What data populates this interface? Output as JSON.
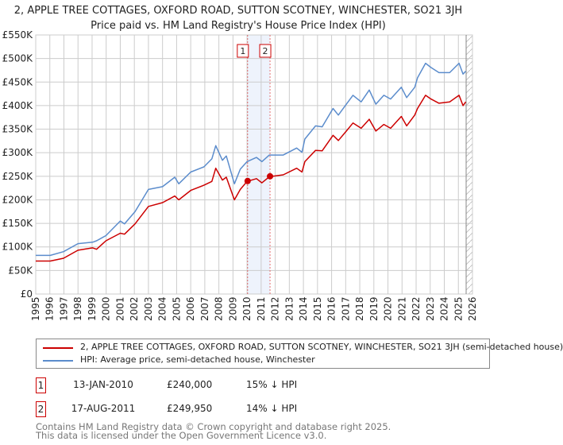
{
  "chart_data": {
    "type": "line",
    "title": "2, APPLE TREE COTTAGES, OXFORD ROAD, SUTTON SCOTNEY, WINCHESTER, SO21 3JH",
    "subtitle": "Price paid vs. HM Land Registry's House Price Index (HPI)",
    "xlabel": "",
    "ylabel": "",
    "xlim": [
      1995,
      2026
    ],
    "ylim": [
      0,
      550000
    ],
    "x_ticks": [
      "1995",
      "1996",
      "1997",
      "1998",
      "1999",
      "2000",
      "2001",
      "2002",
      "2003",
      "2004",
      "2005",
      "2006",
      "2007",
      "2008",
      "2009",
      "2010",
      "2011",
      "2012",
      "2013",
      "2014",
      "2015",
      "2016",
      "2017",
      "2018",
      "2019",
      "2020",
      "2021",
      "2022",
      "2023",
      "2024",
      "2025",
      "2026"
    ],
    "y_ticks": [
      {
        "value": 0,
        "label": "£0"
      },
      {
        "value": 50000,
        "label": "£50K"
      },
      {
        "value": 100000,
        "label": "£100K"
      },
      {
        "value": 150000,
        "label": "£150K"
      },
      {
        "value": 200000,
        "label": "£200K"
      },
      {
        "value": 250000,
        "label": "£250K"
      },
      {
        "value": 300000,
        "label": "£300K"
      },
      {
        "value": 350000,
        "label": "£350K"
      },
      {
        "value": 400000,
        "label": "£400K"
      },
      {
        "value": 450000,
        "label": "£450K"
      },
      {
        "value": 500000,
        "label": "£500K"
      },
      {
        "value": 550000,
        "label": "£550K"
      }
    ],
    "grid": true,
    "x": [
      1995,
      1996.03,
      1996.97,
      1998,
      1999.04,
      1999.32,
      1999.98,
      2001,
      2001.3,
      2002.05,
      2003,
      2004,
      2004.87,
      2005.15,
      2006,
      2006.94,
      2007.5,
      2007.78,
      2008.25,
      2008.53,
      2009.1,
      2009.52,
      2010,
      2010.67,
      2011.05,
      2011.58,
      2012.57,
      2013.52,
      2013.9,
      2014.1,
      2014.86,
      2015.33,
      2016.1,
      2016.48,
      2017.05,
      2017.52,
      2018.1,
      2018.67,
      2019.14,
      2019.71,
      2020.19,
      2020.95,
      2021.33,
      2021.9,
      2022.1,
      2022.67,
      2023.05,
      2023.62,
      2024.38,
      2025.05,
      2025.33,
      2025.52
    ],
    "series": [
      {
        "name": "2, APPLE TREE COTTAGES, OXFORD ROAD, SUTTON SCOTNEY, WINCHESTER, SO21 3JH (semi-detached house)",
        "color": "#cc0000",
        "values": [
          70000,
          70000,
          76000,
          93000,
          98000,
          95000,
          113000,
          129000,
          127000,
          149000,
          186000,
          194000,
          208000,
          200000,
          220000,
          231000,
          239000,
          267000,
          242000,
          248000,
          200000,
          222000,
          239000,
          245000,
          236000,
          249000,
          253000,
          267000,
          259000,
          281000,
          305000,
          304000,
          337000,
          326000,
          346000,
          363000,
          352000,
          371000,
          346000,
          360000,
          352000,
          377000,
          357000,
          380000,
          394000,
          422000,
          414000,
          405000,
          408000,
          422000,
          400000,
          408000
        ]
      },
      {
        "name": "HPI: Average price, semi-detached house, Winchester",
        "color": "#5b8ccc",
        "values": [
          82000,
          82000,
          90000,
          107000,
          110000,
          113000,
          124000,
          155000,
          149000,
          175000,
          222000,
          228000,
          248000,
          234000,
          259000,
          270000,
          287000,
          315000,
          284000,
          293000,
          234000,
          265000,
          281000,
          290000,
          281000,
          295000,
          295000,
          310000,
          301000,
          329000,
          357000,
          355000,
          394000,
          380000,
          403000,
          422000,
          408000,
          433000,
          403000,
          422000,
          414000,
          439000,
          417000,
          439000,
          459000,
          490000,
          481000,
          470000,
          470000,
          490000,
          467000,
          473000
        ]
      }
    ],
    "legend": "below",
    "legend_labels": [
      "2, APPLE TREE COTTAGES, OXFORD ROAD, SUTTON SCOTNEY, WINCHESTER, SO21 3JH (semi-detached house)",
      "HPI: Average price, semi-detached house, Winchester"
    ],
    "sales": [
      {
        "id": "1",
        "x": 2010.04,
        "price": 240000,
        "date": "13-JAN-2010",
        "price_label": "£240,000",
        "diff": "15% ↓ HPI"
      },
      {
        "id": "2",
        "x": 2011.63,
        "price": 249950,
        "date": "17-AUG-2011",
        "price_label": "£249,950",
        "diff": "14% ↓ HPI"
      }
    ],
    "forecast_start": 2025.55
  },
  "footer": {
    "line1": "Contains HM Land Registry data © Crown copyright and database right 2025.",
    "line2": "This data is licensed under the Open Government Licence v3.0."
  }
}
